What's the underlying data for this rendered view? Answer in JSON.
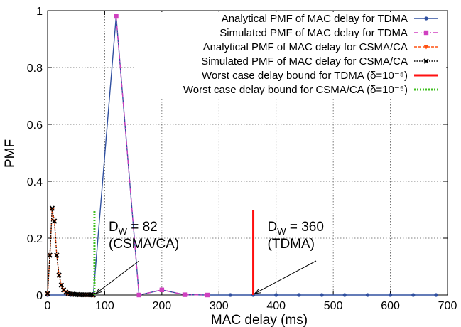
{
  "chart_data": {
    "type": "line",
    "title": "",
    "xlabel": "MAC delay (ms)",
    "ylabel": "PMF",
    "xlim": [
      0,
      700
    ],
    "ylim": [
      0,
      1
    ],
    "xticks": [
      0,
      100,
      200,
      300,
      400,
      500,
      600,
      700
    ],
    "yticks": [
      0,
      0.2,
      0.4,
      0.6,
      0.8,
      1
    ],
    "xtick_labels": [
      "0",
      "100",
      "200",
      "300",
      "400",
      "500",
      "600",
      "700"
    ],
    "ytick_labels": [
      "0",
      "0.2",
      "0.4",
      "0.6",
      "0.8",
      "1"
    ],
    "grid": true,
    "legend_position": "top-right",
    "series": [
      {
        "name": "Analytical PMF of MAC delay for TDMA",
        "color": "#3050a0",
        "line": "solid",
        "marker": "circle",
        "x": [
          0,
          40,
          80,
          120,
          160,
          200,
          240,
          280,
          320,
          360,
          400,
          440,
          480,
          520,
          560,
          600,
          640,
          680
        ],
        "y": [
          0,
          0,
          0,
          0.98,
          0,
          0.018,
          0.001,
          0,
          0,
          0,
          0,
          0,
          0,
          0,
          0,
          0,
          0,
          0
        ]
      },
      {
        "name": "Simulated PMF of MAC delay for TDMA",
        "color": "#d040c0",
        "line": "dash-dot",
        "marker": "square",
        "x": [
          120,
          160,
          200,
          240,
          280
        ],
        "y": [
          0.98,
          0,
          0.018,
          0.001,
          0
        ]
      },
      {
        "name": "Analytical PMF of MAC delay for CSMA/CA",
        "color": "#ff5010",
        "line": "dashed",
        "marker": "triangle-down",
        "x": [
          0,
          4,
          8,
          12,
          16,
          20,
          24,
          28,
          32,
          36,
          40,
          44,
          48,
          52,
          56,
          60,
          64,
          68,
          72,
          76,
          80
        ],
        "y": [
          0.005,
          0.14,
          0.3,
          0.26,
          0.14,
          0.07,
          0.035,
          0.018,
          0.01,
          0.006,
          0.004,
          0.003,
          0.002,
          0.002,
          0.001,
          0.001,
          0.001,
          0.001,
          0.001,
          0.001,
          0
        ]
      },
      {
        "name": "Simulated PMF of MAC delay for CSMA/CA",
        "color": "#000000",
        "line": "dotted",
        "marker": "x",
        "x": [
          0,
          4,
          8,
          12,
          16,
          20,
          24,
          28,
          32,
          36,
          40,
          44,
          48,
          52,
          56,
          60,
          64,
          68,
          72,
          76,
          80
        ],
        "y": [
          0.005,
          0.14,
          0.305,
          0.26,
          0.14,
          0.07,
          0.035,
          0.018,
          0.01,
          0.006,
          0.004,
          0.003,
          0.002,
          0.002,
          0.001,
          0.001,
          0.001,
          0.001,
          0.001,
          0.001,
          0
        ]
      },
      {
        "name": "Worst case delay bound for TDMA (δ=10⁻⁵)",
        "color": "#ff1010",
        "line": "solid-thick",
        "marker": "none",
        "x": [
          360,
          360
        ],
        "y": [
          0,
          0.3
        ]
      },
      {
        "name": "Worst case delay bound for CSMA/CA (δ=10⁻⁵)",
        "color": "#40c020",
        "line": "dotted-thick",
        "marker": "none",
        "x": [
          82,
          82
        ],
        "y": [
          0,
          0.3
        ]
      }
    ],
    "annotations": [
      {
        "line1": "D",
        "sub": "W",
        "rest": " = 82",
        "line2": "(CSMA/CA)",
        "text_x": 82,
        "text_y": 0.2,
        "arrow_from": [
          160,
          0.12
        ],
        "arrow_to": [
          82,
          0
        ]
      },
      {
        "line1": "D",
        "sub": "W",
        "rest": " = 360",
        "line2": "(TDMA)",
        "text_x": 360,
        "text_y": 0.2,
        "arrow_from": [
          470,
          0.12
        ],
        "arrow_to": [
          360,
          0
        ]
      }
    ]
  }
}
